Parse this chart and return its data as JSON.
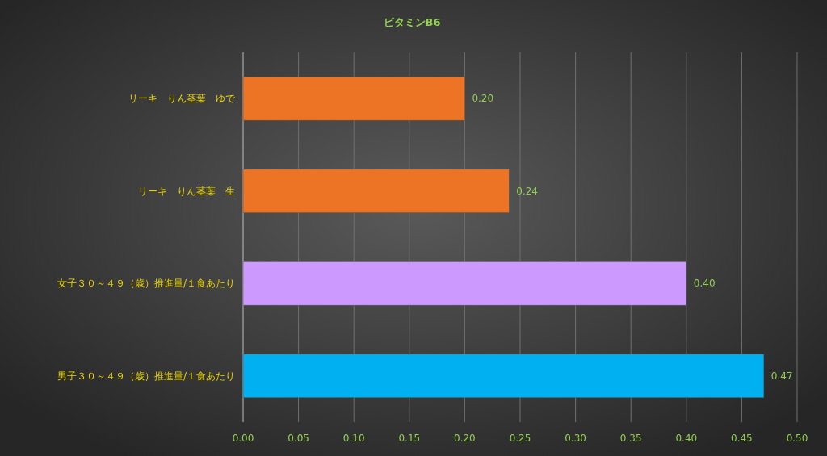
{
  "chart_data": {
    "type": "bar",
    "orientation": "horizontal",
    "title": "ビタミンB6",
    "categories": [
      "リーキ　りん茎葉　ゆで",
      "リーキ　りん茎葉　生",
      "女子３０～４９（歳）推進量/１食あたり",
      "男子３０～４９（歳）推進量/１食あたり"
    ],
    "values": [
      0.2,
      0.24,
      0.4,
      0.47
    ],
    "colors": [
      "#ed7424",
      "#ed7424",
      "#cc99ff",
      "#00b0f0"
    ],
    "value_labels": [
      "0.20",
      "0.24",
      "0.40",
      "0.47"
    ],
    "xlim": [
      0,
      0.5
    ],
    "xticks": [
      {
        "value": 0,
        "label": "0.00"
      },
      {
        "value": 0.05,
        "label": "0.05"
      },
      {
        "value": 0.1,
        "label": "0.10"
      },
      {
        "value": 0.15,
        "label": "0.15"
      },
      {
        "value": 0.2,
        "label": "0.20"
      },
      {
        "value": 0.25,
        "label": "0.25"
      },
      {
        "value": 0.3,
        "label": "0.30"
      },
      {
        "value": 0.35,
        "label": "0.35"
      },
      {
        "value": 0.4,
        "label": "0.40"
      },
      {
        "value": 0.45,
        "label": "0.45"
      },
      {
        "value": 0.5,
        "label": "0.50"
      }
    ],
    "grid": "x"
  }
}
